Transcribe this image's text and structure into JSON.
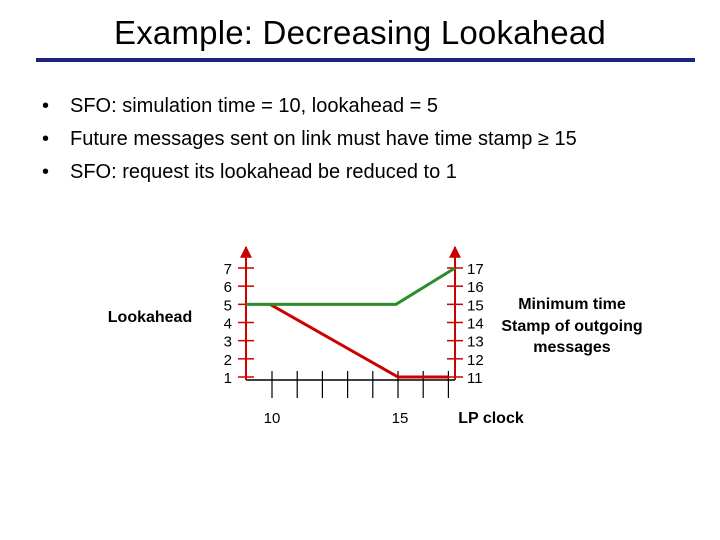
{
  "slide": {
    "title": "Example: Decreasing Lookahead",
    "title_rule_color": "#1a237e",
    "bullets": [
      "SFO: simulation time = 10, lookahead = 5",
      "Future messages sent on link must have time stamp ≥ 15",
      "SFO: request its lookahead be reduced to 1"
    ],
    "bullet_glyph": "•"
  },
  "diagram": {
    "left_label": "Lookahead",
    "right_label_lines": [
      "Minimum time",
      "Stamp of outgoing",
      "messages"
    ],
    "bottom_label": "LP clock",
    "left_axis_ticks": [
      "7",
      "6",
      "5",
      "4",
      "3",
      "2",
      "1"
    ],
    "right_axis_ticks": [
      "17",
      "16",
      "15",
      "14",
      "13",
      "12",
      "11"
    ],
    "x_tick_labels": [
      "10",
      "15"
    ],
    "axis_color": "#cc0000",
    "lookahead_color": "#cc0000",
    "min_timestamp_color": "#2e8b2e"
  },
  "chart_data": {
    "type": "line",
    "xlabel": "LP clock",
    "xticks": [
      "10",
      "15"
    ],
    "y_left": {
      "label": "Lookahead",
      "range": [
        1,
        7
      ]
    },
    "y_right": {
      "label": "Minimum time Stamp of outgoing messages",
      "range": [
        11,
        17
      ]
    },
    "series": [
      {
        "axis": "left",
        "x": [
          10,
          15,
          17
        ],
        "y": [
          5,
          1,
          1
        ]
      },
      {
        "axis": "right",
        "x": [
          10,
          15,
          17
        ],
        "y": [
          15,
          15,
          17
        ]
      }
    ]
  }
}
